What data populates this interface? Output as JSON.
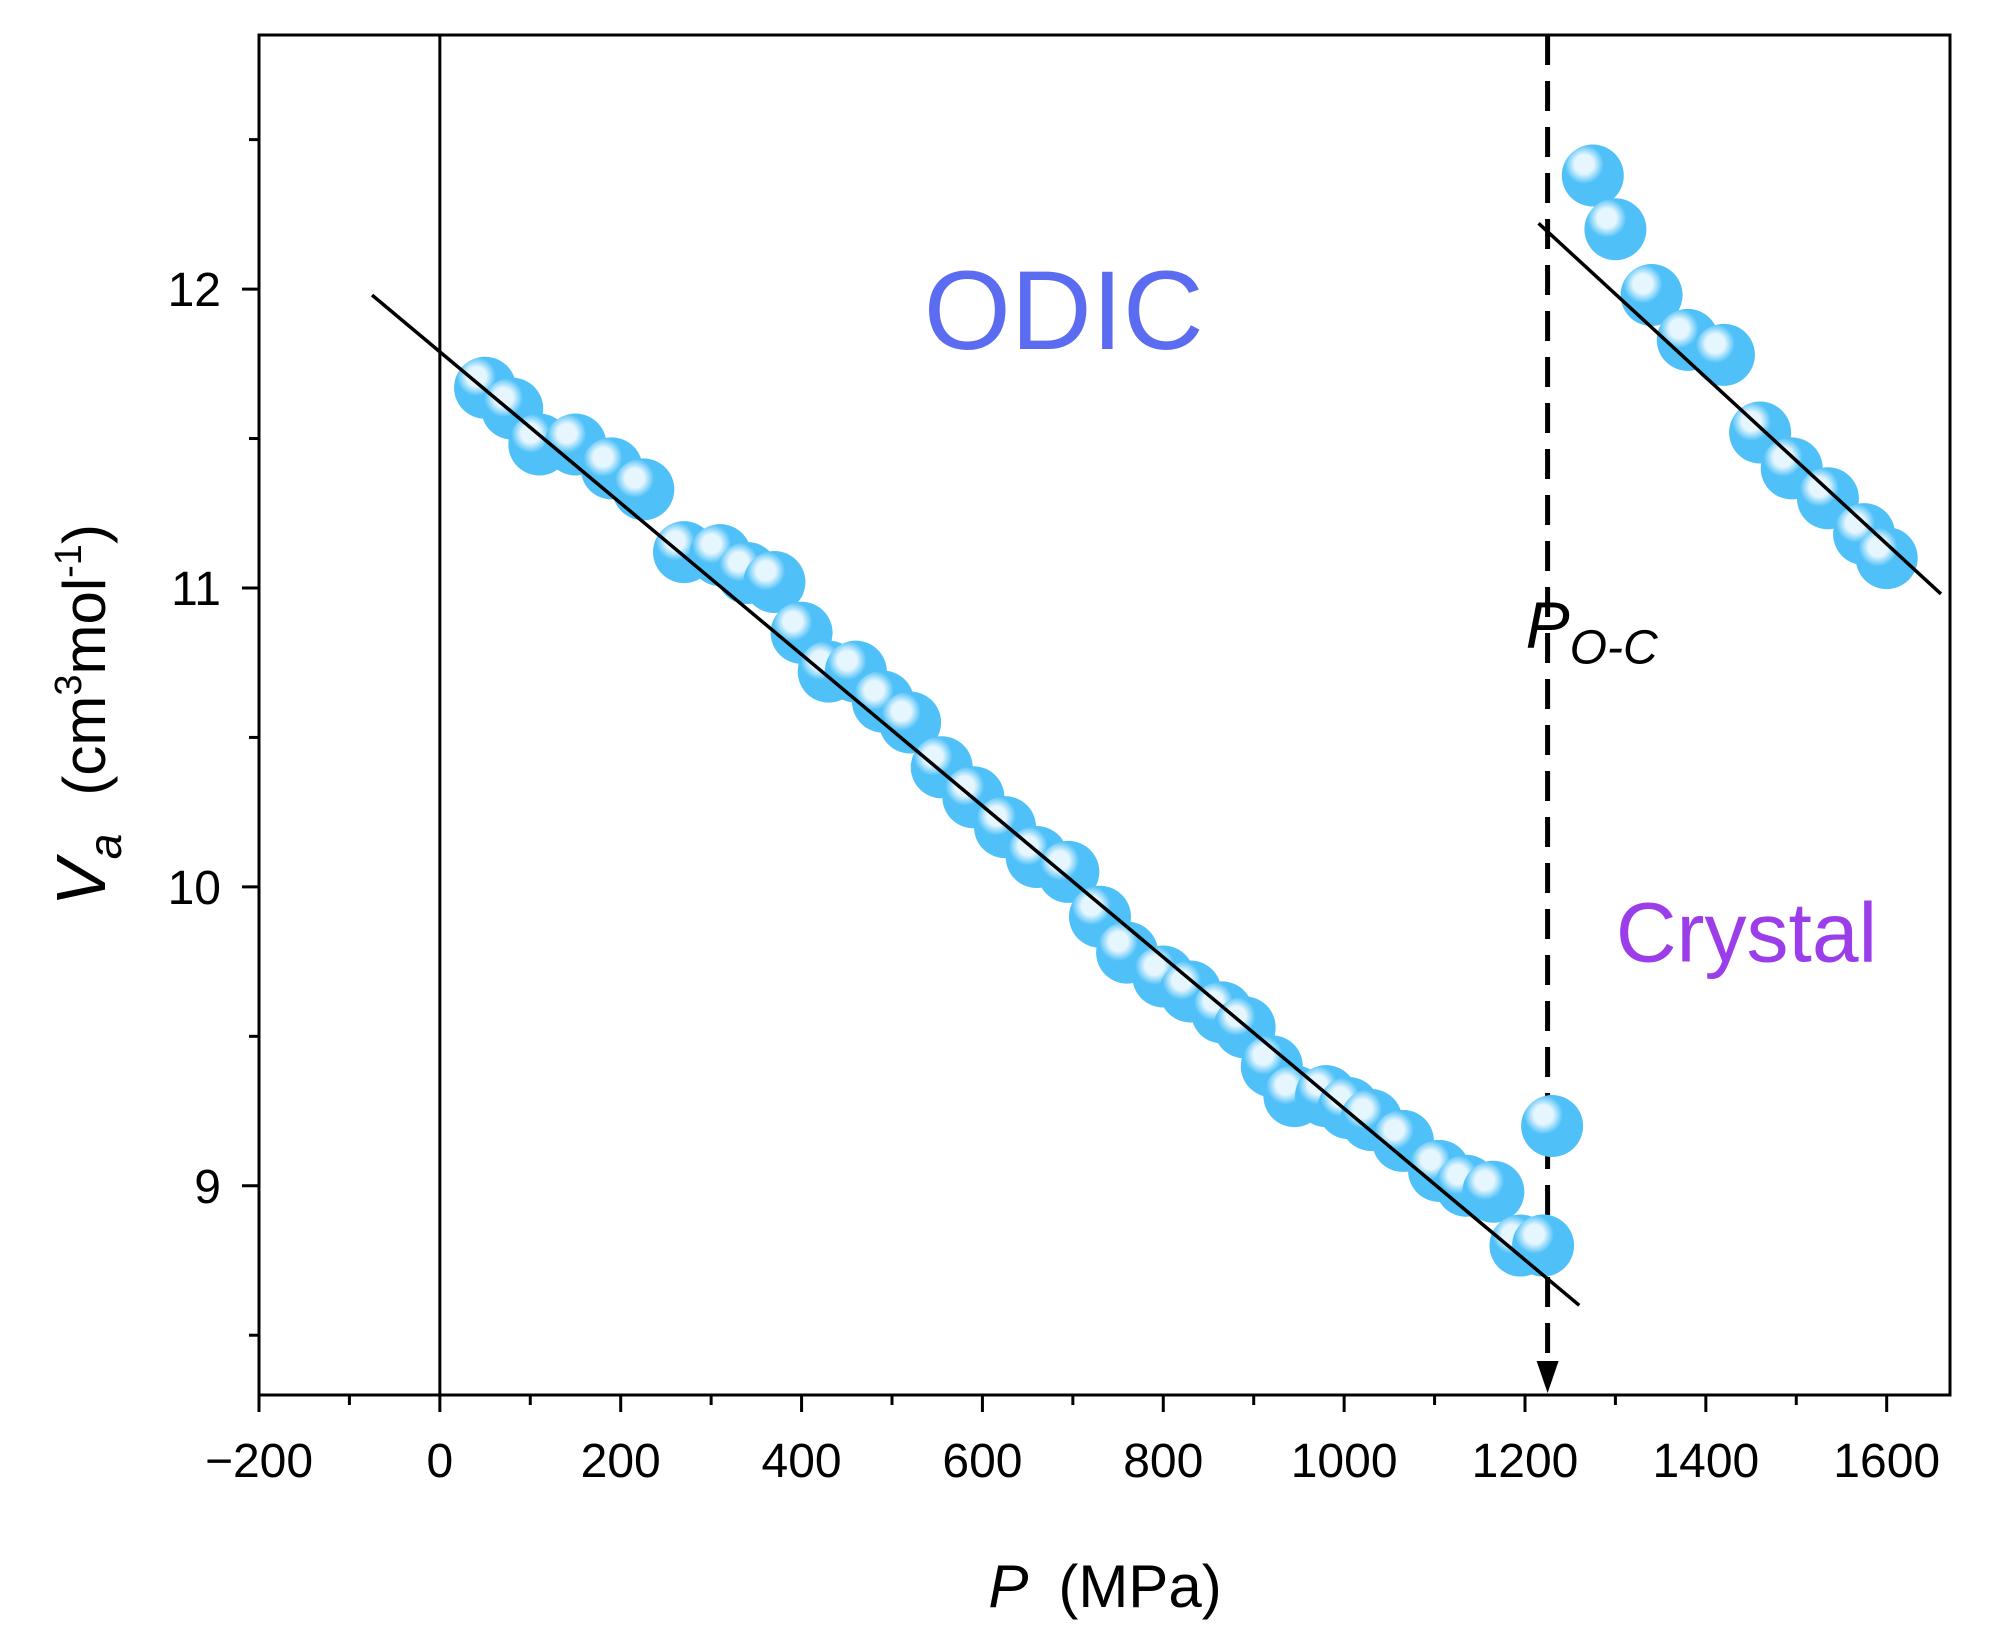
{
  "chart_data": {
    "type": "scatter",
    "title": "",
    "xlabel": {
      "symbol": "P",
      "unit": "(MPa)"
    },
    "ylabel": {
      "symbol": "V",
      "subscript": "a",
      "unit_prefix": "(cm",
      "unit_sup1": "3",
      "unit_mid": "mol",
      "unit_sup2": "-1",
      "unit_suffix": ")"
    },
    "xlim": [
      -200,
      1670
    ],
    "ylim": [
      8.3,
      12.85
    ],
    "x_ticks": [
      -200,
      0,
      200,
      400,
      600,
      800,
      1000,
      1200,
      1400,
      1600
    ],
    "x_tick_labels": [
      "−200",
      "0",
      "200",
      "400",
      "600",
      "800",
      "1000",
      "1200",
      "1400",
      "1600"
    ],
    "y_ticks": [
      9,
      10,
      11,
      12
    ],
    "y_tick_labels": [
      "9",
      "10",
      "11",
      "12"
    ],
    "grid": false,
    "marker_color": "#4FC1F8",
    "marker_highlight": "#E6F6FE",
    "fit_color": "#000000",
    "series": [
      {
        "name": "ODIC",
        "x": [
          50,
          80,
          110,
          150,
          190,
          225,
          270,
          310,
          340,
          370,
          400,
          430,
          460,
          490,
          520,
          555,
          590,
          625,
          660,
          695,
          730,
          760,
          800,
          830,
          865,
          890,
          920,
          945,
          980,
          1005,
          1030,
          1065,
          1105,
          1135,
          1165,
          1195
        ],
        "y": [
          11.67,
          11.6,
          11.48,
          11.48,
          11.4,
          11.33,
          11.12,
          11.11,
          11.05,
          11.02,
          10.85,
          10.72,
          10.72,
          10.62,
          10.55,
          10.4,
          10.3,
          10.2,
          10.1,
          10.05,
          9.9,
          9.78,
          9.7,
          9.65,
          9.58,
          9.53,
          9.4,
          9.3,
          9.3,
          9.26,
          9.22,
          9.15,
          9.05,
          9.0,
          8.98,
          8.8
        ]
      },
      {
        "name": "Crystal",
        "x": [
          1220,
          1230,
          1275,
          1300,
          1340,
          1380,
          1420,
          1460,
          1495,
          1535,
          1575,
          1600
        ],
        "y": [
          8.8,
          9.2,
          12.38,
          12.2,
          11.98,
          11.83,
          11.78,
          11.52,
          11.4,
          11.3,
          11.18,
          11.1
        ]
      }
    ],
    "fits": [
      {
        "name": "ODIC fit",
        "x": [
          -75,
          1260
        ],
        "y": [
          11.98,
          8.6
        ]
      },
      {
        "name": "Crystal fit",
        "x": [
          1215,
          1660
        ],
        "y": [
          12.22,
          10.98
        ]
      }
    ],
    "reference_lines": [
      {
        "orientation": "vertical",
        "x": 0,
        "style": "solid"
      },
      {
        "orientation": "vertical",
        "x": 1225,
        "style": "dashed",
        "arrow": "down",
        "label_main": "P",
        "label_sub": "O-C"
      }
    ],
    "annotations": [
      {
        "text": "ODIC",
        "x": 690,
        "y": 11.8,
        "color": "#5B6CF0"
      },
      {
        "text": "Crystal",
        "x": 1445,
        "y": 9.75,
        "color": "#9B3EEA"
      }
    ]
  }
}
